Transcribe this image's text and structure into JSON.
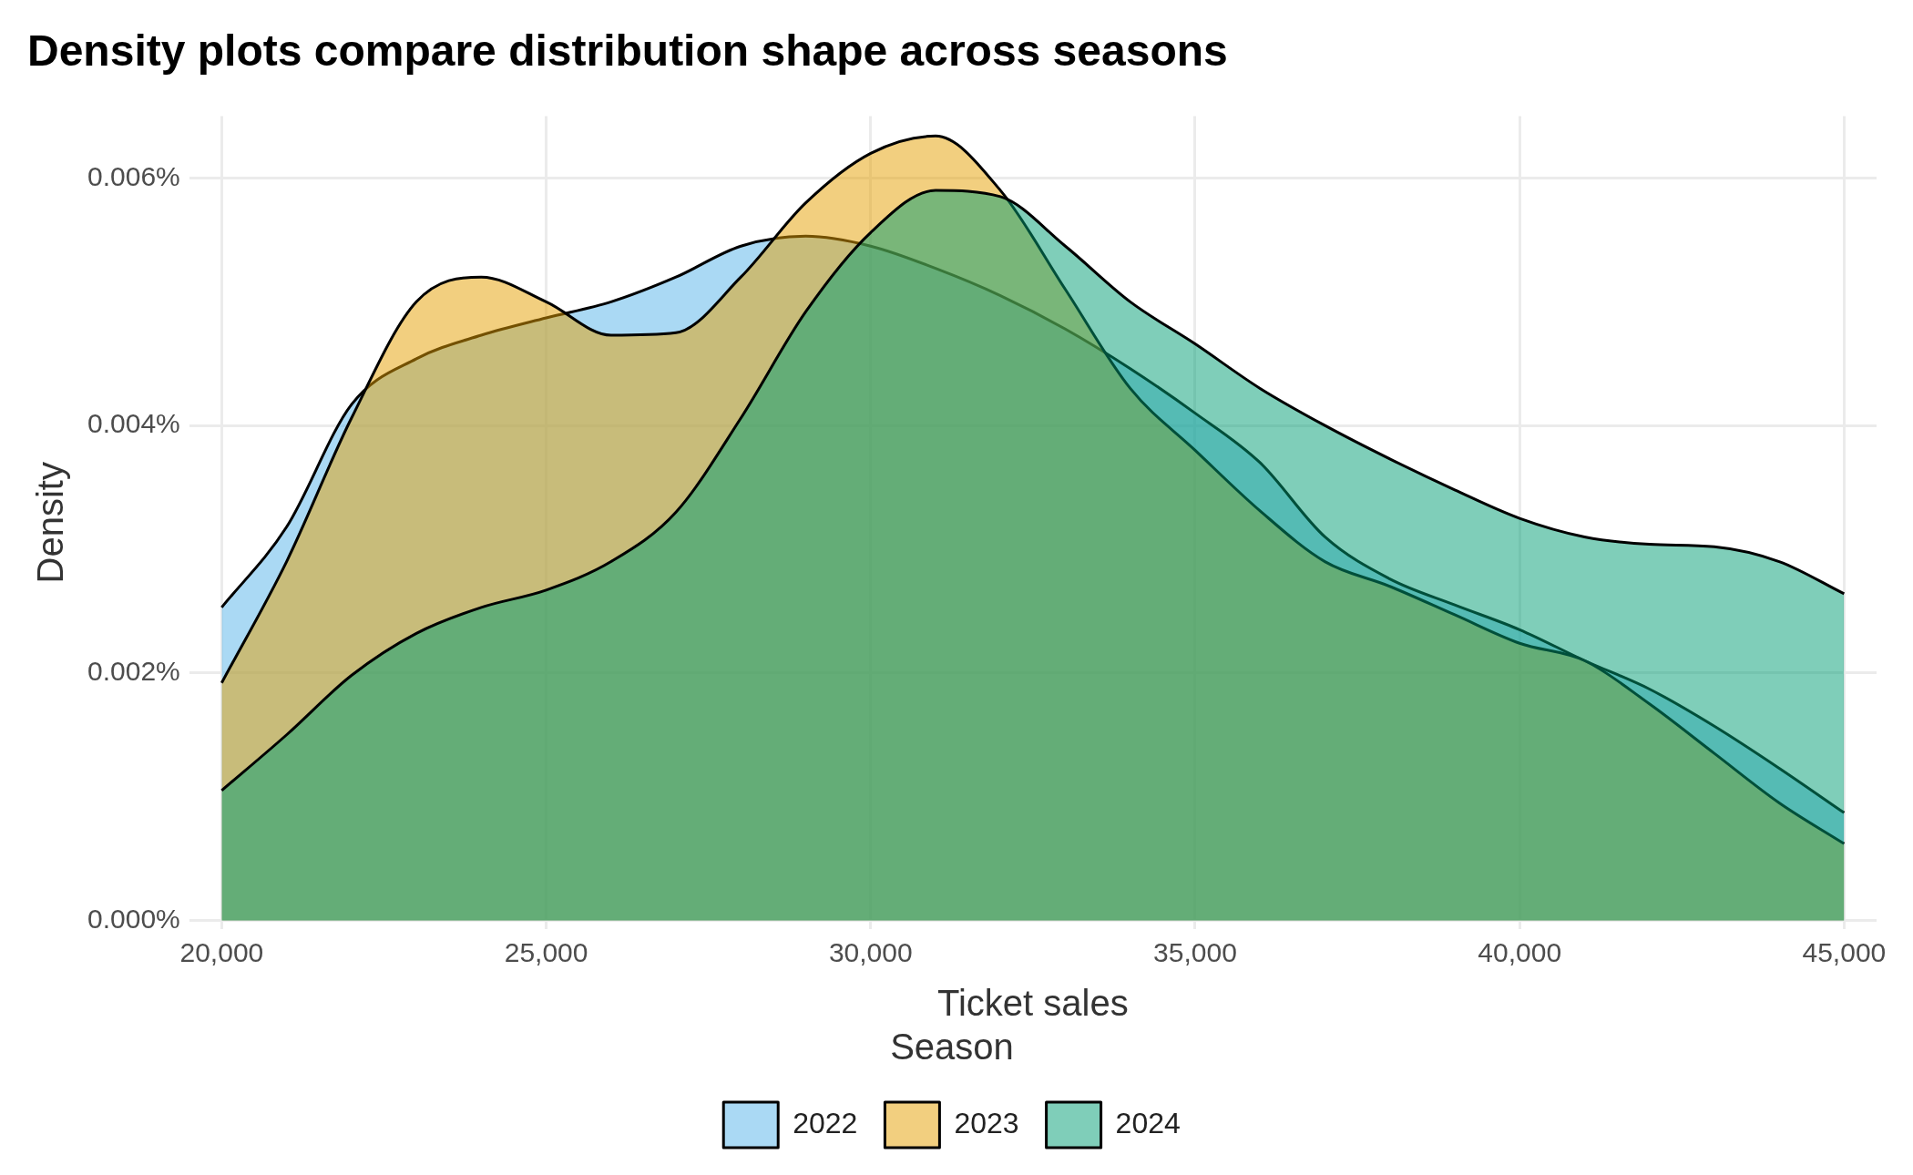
{
  "chart_data": {
    "type": "area",
    "title": "Density plots compare distribution shape across seasons",
    "xlabel": "Ticket sales",
    "ylabel": "Density",
    "legend_title": "Season",
    "legend": "bottom",
    "grid": true,
    "marker": "none",
    "line_style": "solid",
    "x": [
      20000,
      21000,
      22000,
      23000,
      24000,
      25000,
      26000,
      27000,
      28000,
      29000,
      30000,
      31000,
      32000,
      33000,
      34000,
      35000,
      36000,
      37000,
      38000,
      39000,
      40000,
      41000,
      42000,
      43000,
      44000,
      45000
    ],
    "series": [
      {
        "name": "2022",
        "color": "#56b4e9",
        "values": [
          0.00253,
          0.00318,
          0.00417,
          0.00454,
          0.00473,
          0.00487,
          0.005,
          0.0052,
          0.00545,
          0.00553,
          0.00545,
          0.00527,
          0.00505,
          0.00478,
          0.00446,
          0.0041,
          0.0037,
          0.0031,
          0.00276,
          0.00255,
          0.00235,
          0.0021,
          0.00187,
          0.00157,
          0.00123,
          0.00087
        ]
      },
      {
        "name": "2023",
        "color": "#e69f00",
        "values": [
          0.00192,
          0.0029,
          0.00406,
          0.005,
          0.0052,
          0.005,
          0.00473,
          0.00475,
          0.0052,
          0.0058,
          0.0062,
          0.00634,
          0.0059,
          0.0051,
          0.0043,
          0.0038,
          0.00331,
          0.0029,
          0.0027,
          0.00247,
          0.00224,
          0.0021,
          0.00175,
          0.00135,
          0.00095,
          0.00062
        ]
      },
      {
        "name": "2024",
        "color": "#009e73",
        "values": [
          0.00105,
          0.0015,
          0.00198,
          0.00232,
          0.00253,
          0.00267,
          0.0029,
          0.0033,
          0.00406,
          0.00492,
          0.00556,
          0.0059,
          0.00585,
          0.00545,
          0.005,
          0.00466,
          0.0043,
          0.004,
          0.00373,
          0.00348,
          0.00325,
          0.0031,
          0.00304,
          0.00302,
          0.0029,
          0.00264
        ]
      }
    ],
    "xlim": [
      19500,
      45500
    ],
    "xticks": [
      {
        "value": 20000,
        "label": "20,000"
      },
      {
        "value": 25000,
        "label": "25,000"
      },
      {
        "value": 30000,
        "label": "30,000"
      },
      {
        "value": 35000,
        "label": "35,000"
      },
      {
        "value": 40000,
        "label": "40,000"
      },
      {
        "value": 45000,
        "label": "45,000"
      }
    ],
    "ylim": [
      -7e-05,
      0.0065
    ],
    "yticks": [
      {
        "value": 0,
        "label": "0.000%"
      },
      {
        "value": 0.002,
        "label": "0.002%"
      },
      {
        "value": 0.004,
        "label": "0.004%"
      },
      {
        "value": 0.006,
        "label": "0.006%"
      }
    ]
  }
}
